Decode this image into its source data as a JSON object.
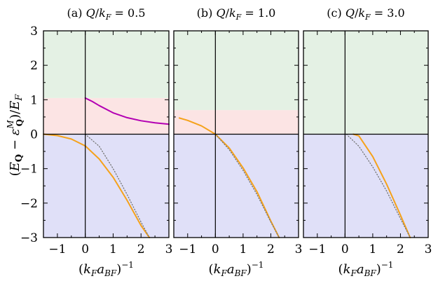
{
  "chart_data": [
    {
      "type": "line",
      "title": "(a) Q/k_F = 0.5",
      "xlabel": "(k_F a_BF)^-1",
      "ylabel": "(E_Q − ε^M_Q)/E_F",
      "xlim": [
        -1.5,
        3
      ],
      "ylim": [
        -3,
        3
      ],
      "xticks": [
        -1,
        0,
        1,
        2,
        3
      ],
      "yticks": [
        -3,
        -2,
        -1,
        0,
        1,
        2,
        3
      ],
      "bands": [
        {
          "y0": -3,
          "y1": 0,
          "color": "#e0e0f8"
        },
        {
          "y0": 0,
          "y1": 1.05,
          "color": "#fce4e4"
        },
        {
          "y0": 1.05,
          "y1": 3,
          "color": "#e4f1e4"
        }
      ],
      "series": [
        {
          "style": "solid",
          "color": "#f5a21b",
          "x": [
            -1.5,
            -1.0,
            -0.5,
            0.0,
            0.5,
            1.0,
            1.5,
            2.0,
            2.3
          ],
          "y": [
            0.0,
            -0.04,
            -0.14,
            -0.34,
            -0.72,
            -1.25,
            -1.92,
            -2.65,
            -3.0
          ]
        },
        {
          "style": "dotted",
          "color": "#777777",
          "x": [
            0.0,
            0.5,
            1.0,
            1.5,
            2.0,
            2.3
          ],
          "y": [
            0.0,
            -0.35,
            -1.0,
            -1.75,
            -2.55,
            -3.0
          ]
        },
        {
          "style": "solid",
          "color": "#b300b3",
          "x": [
            0.0,
            0.25,
            0.5,
            1.0,
            1.5,
            2.0,
            2.5,
            3.0
          ],
          "y": [
            1.05,
            0.95,
            0.83,
            0.62,
            0.48,
            0.39,
            0.33,
            0.29
          ]
        }
      ]
    },
    {
      "type": "line",
      "title": "(b) Q/k_F = 1.0",
      "xlabel": "(k_F a_BF)^-1",
      "xlim": [
        -1.5,
        3
      ],
      "ylim": [
        -3,
        3
      ],
      "xticks": [
        -1,
        0,
        1,
        2,
        3
      ],
      "yticks": [
        -3,
        -2,
        -1,
        0,
        1,
        2,
        3
      ],
      "bands": [
        {
          "y0": -3,
          "y1": 0,
          "color": "#e0e0f8"
        },
        {
          "y0": 0,
          "y1": 0.7,
          "color": "#fce4e4"
        },
        {
          "y0": 0.7,
          "y1": 3,
          "color": "#e4f1e4"
        }
      ],
      "series": [
        {
          "style": "solid",
          "color": "#f5a21b",
          "x": [
            -1.3,
            -1.0,
            -0.5,
            0.0,
            0.5,
            1.0,
            1.5,
            2.0,
            2.3
          ],
          "y": [
            0.47,
            0.4,
            0.24,
            0.0,
            -0.4,
            -0.98,
            -1.67,
            -2.52,
            -3.0
          ]
        },
        {
          "style": "dotted",
          "color": "#777777",
          "x": [
            0.0,
            0.5,
            1.0,
            1.5,
            2.0,
            2.3
          ],
          "y": [
            0.0,
            -0.45,
            -1.05,
            -1.75,
            -2.55,
            -3.0
          ]
        }
      ]
    },
    {
      "type": "line",
      "title": "(c) Q/k_F = 3.0",
      "xlabel": "(k_F a_BF)^-1",
      "xlim": [
        -1.5,
        3
      ],
      "ylim": [
        -3,
        3
      ],
      "xticks": [
        -1,
        0,
        1,
        2,
        3
      ],
      "yticks": [
        -3,
        -2,
        -1,
        0,
        1,
        2,
        3
      ],
      "bands": [
        {
          "y0": -3,
          "y1": 0,
          "color": "#e0e0f8"
        },
        {
          "y0": 0,
          "y1": 3,
          "color": "#e4f1e4"
        }
      ],
      "series": [
        {
          "style": "solid",
          "color": "#f5a21b",
          "x": [
            0.3,
            0.5,
            1.0,
            1.5,
            2.0,
            2.35
          ],
          "y": [
            0.0,
            -0.05,
            -0.65,
            -1.45,
            -2.35,
            -3.0
          ]
        },
        {
          "style": "dotted",
          "color": "#777777",
          "x": [
            0.05,
            0.5,
            1.0,
            1.5,
            2.0,
            2.35
          ],
          "y": [
            0.0,
            -0.35,
            -0.95,
            -1.65,
            -2.45,
            -3.0
          ]
        }
      ]
    }
  ]
}
